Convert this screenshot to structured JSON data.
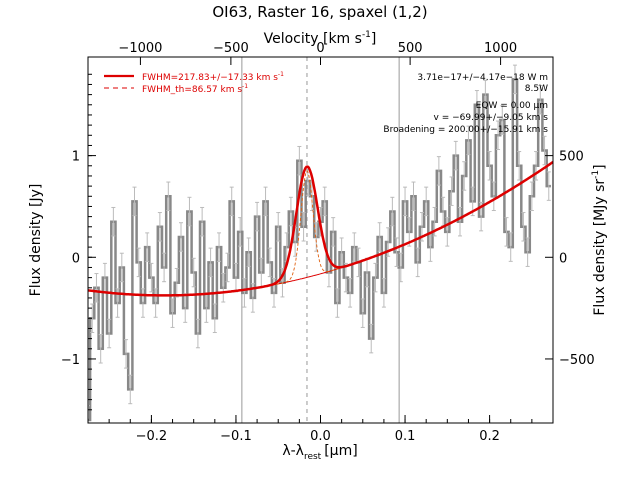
{
  "chart_data": {
    "type": "line",
    "title": "OI63, Raster 16, spaxel (1,2)",
    "xlabel": "λ-λ",
    "xlabel_sub": "rest",
    "xlabel_unit": "[μm]",
    "ylabel_left": "Flux density [Jy]",
    "ylabel_right": "Flux density [MJy sr",
    "ylabel_right_sup": "-1",
    "ylabel_right_close": "]",
    "xlabel_top": "Velocity [km s",
    "xlabel_top_sup": "-1",
    "xlabel_top_close": "]",
    "xlim": [
      -0.275,
      0.275
    ],
    "ylim": [
      -1.63,
      1.97
    ],
    "x_ticks": [
      -0.2,
      -0.1,
      0.0,
      0.1,
      0.2
    ],
    "x_tick_labels": [
      "−0.2",
      "−0.1",
      "0.0",
      "0.1",
      "0.2"
    ],
    "y_ticks": [
      -1,
      0,
      1
    ],
    "y_tick_labels": [
      "−1",
      "0",
      "1"
    ],
    "top_ticks_x": [
      -0.213,
      -0.106,
      0.0,
      0.106,
      0.213
    ],
    "top_tick_labels": [
      "−1000",
      "−500",
      "0",
      "500",
      "1000"
    ],
    "right_ticks_y": [
      -1.0,
      0.0,
      1.0
    ],
    "right_tick_labels": [
      "−500",
      "0",
      "500"
    ],
    "vertical_lines_x": [
      -0.093,
      0.093
    ],
    "rest_line_x": -0.016,
    "legend": {
      "placement": "top-left",
      "entries": [
        {
          "label": "FWHM=217.83+/−17.33 km s",
          "sup": "-1",
          "style": "solid",
          "color": "#dd0000"
        },
        {
          "label": "FWHM_th=86.57 km s",
          "sup": "-1",
          "style": "dashed",
          "color": "#dd0000"
        }
      ]
    },
    "annotations": [
      "3.71e−17+/−4.17e−18 W m",
      "8.5W",
      "EQW = 0.00 μm",
      "v = −69.99+/−9.05 km s",
      "Broadening = 200.00+/−15.91 km s"
    ],
    "colors": {
      "data": "#888888",
      "fit": "#dd0000",
      "component": "#e06010",
      "grid": "#999999"
    },
    "fit_model": {
      "baseline_a": -0.371,
      "baseline_b": 0.364,
      "baseline_c": 12.43,
      "peak_center": -0.016,
      "peak_amp": 1.09,
      "peak_sigma": 0.0125
    },
    "series": [
      {
        "name": "data",
        "x": [
          -0.275,
          -0.27,
          -0.265,
          -0.26,
          -0.255,
          -0.25,
          -0.245,
          -0.24,
          -0.235,
          -0.23,
          -0.225,
          -0.22,
          -0.215,
          -0.21,
          -0.205,
          -0.2,
          -0.195,
          -0.19,
          -0.185,
          -0.18,
          -0.175,
          -0.17,
          -0.165,
          -0.16,
          -0.155,
          -0.15,
          -0.145,
          -0.14,
          -0.135,
          -0.13,
          -0.125,
          -0.12,
          -0.115,
          -0.11,
          -0.105,
          -0.1,
          -0.095,
          -0.09,
          -0.085,
          -0.08,
          -0.075,
          -0.07,
          -0.065,
          -0.06,
          -0.055,
          -0.05,
          -0.045,
          -0.04,
          -0.035,
          -0.03,
          -0.025,
          -0.02,
          -0.015,
          -0.01,
          -0.005,
          0.0,
          0.005,
          0.01,
          0.015,
          0.02,
          0.025,
          0.03,
          0.035,
          0.04,
          0.045,
          0.05,
          0.055,
          0.06,
          0.065,
          0.07,
          0.075,
          0.08,
          0.085,
          0.09,
          0.095,
          0.1,
          0.105,
          0.11,
          0.115,
          0.12,
          0.125,
          0.13,
          0.135,
          0.14,
          0.145,
          0.15,
          0.155,
          0.16,
          0.165,
          0.17,
          0.175,
          0.18,
          0.185,
          0.19,
          0.195,
          0.2,
          0.205,
          0.21,
          0.215,
          0.22,
          0.225,
          0.23,
          0.235,
          0.24,
          0.245,
          0.25,
          0.255,
          0.26,
          0.265,
          0.27
        ],
        "y": [
          -1.6,
          -0.6,
          -0.3,
          -0.9,
          -0.2,
          -0.75,
          0.35,
          -0.45,
          -0.1,
          -0.95,
          -1.3,
          0.55,
          -0.05,
          -0.45,
          0.1,
          -0.2,
          -0.45,
          0.3,
          -0.1,
          0.6,
          -0.55,
          -0.25,
          0.2,
          -0.5,
          0.45,
          -0.15,
          -0.75,
          0.35,
          -0.5,
          -0.05,
          -0.6,
          0.1,
          -0.3,
          -0.1,
          0.55,
          -0.2,
          0.25,
          -0.35,
          0.05,
          -0.4,
          0.4,
          -0.15,
          0.55,
          -0.05,
          -0.35,
          0.3,
          -0.25,
          0.1,
          0.45,
          0.15,
          0.95,
          0.3,
          0.75,
          0.6,
          0.2,
          0.35,
          0.55,
          -0.15,
          0.25,
          -0.45,
          0.05,
          -0.2,
          -0.35,
          0.1,
          -0.05,
          -0.55,
          -0.15,
          -0.8,
          -0.2,
          0.2,
          -0.35,
          0.15,
          0.45,
          0.05,
          -0.1,
          0.55,
          0.25,
          0.6,
          -0.05,
          0.3,
          0.55,
          0.1,
          0.35,
          0.85,
          0.45,
          0.25,
          0.65,
          1.0,
          0.35,
          0.8,
          1.15,
          0.55,
          1.5,
          0.4,
          1.6,
          0.9,
          0.6,
          1.2,
          1.35,
          0.25,
          0.1,
          1.75,
          0.9,
          0.3,
          0.05,
          0.6,
          0.9,
          1.55,
          1.05,
          0.7
        ]
      }
    ]
  }
}
